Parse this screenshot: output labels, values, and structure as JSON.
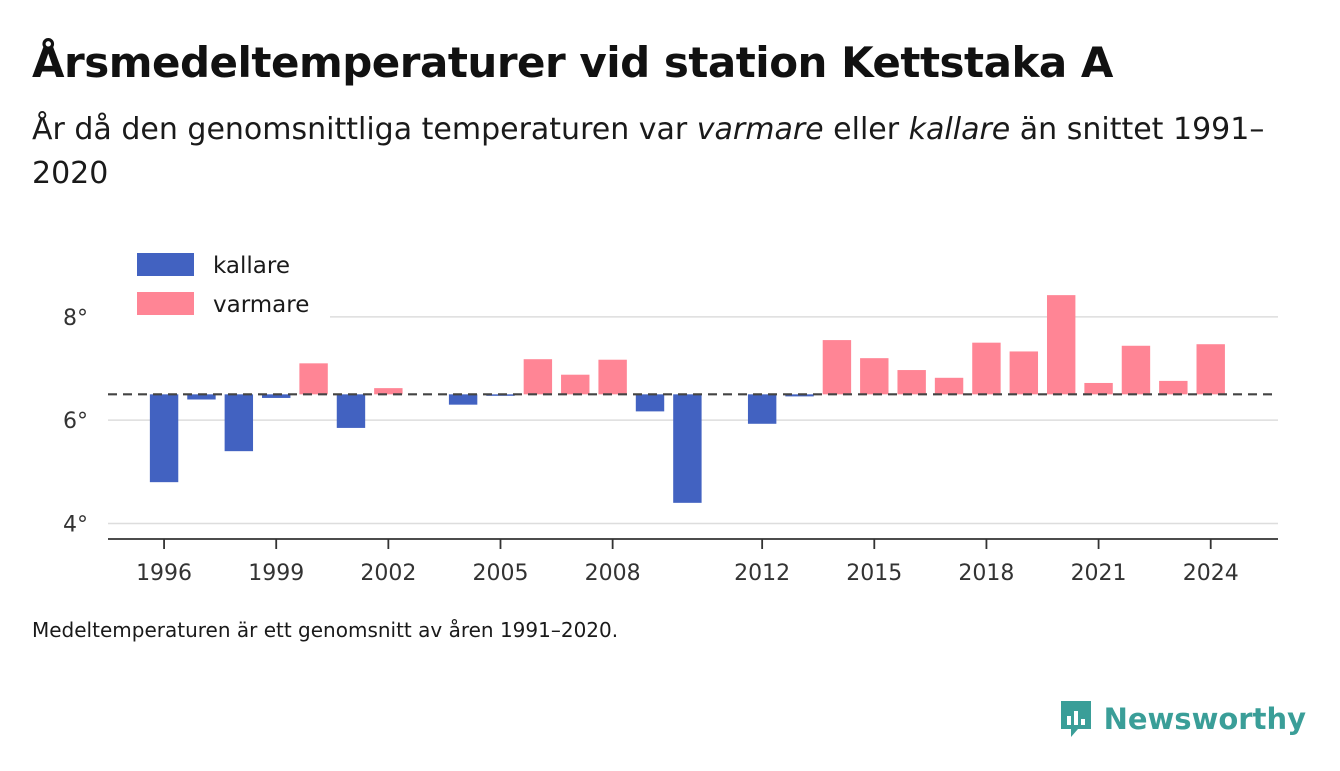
{
  "header": {
    "title": "Årsmedeltemperaturer vid station Kettstaka A",
    "subtitle_pre": "År då den genomsnittliga temperaturen var ",
    "subtitle_warm": "varmare",
    "subtitle_mid": " eller ",
    "subtitle_cold": "kallare",
    "subtitle_post": " än snittet 1991–2020"
  },
  "footnote": "Medeltemperaturen är ett genomsnitt av åren 1991–2020.",
  "brand": {
    "name": "Newsworthy",
    "icon": "newsworthy-logo-icon",
    "color": "#3a9e98"
  },
  "chart_data": {
    "type": "bar",
    "baseline": 6.5,
    "ylim": [
      3.7,
      9.1
    ],
    "yticks": [
      4,
      6,
      8
    ],
    "ytick_labels": [
      "4°",
      "6°",
      "8°"
    ],
    "xlim": [
      1994.5,
      2025.8
    ],
    "xticks": [
      1996,
      1999,
      2002,
      2005,
      2008,
      2012,
      2015,
      2018,
      2021,
      2024
    ],
    "xtick_labels": [
      "1996",
      "1999",
      "2002",
      "2005",
      "2008",
      "2012",
      "2015",
      "2018",
      "2021",
      "2024"
    ],
    "grid": true,
    "legend": {
      "position": "top-left",
      "items": [
        {
          "label": "kallare",
          "color": "#4262c1"
        },
        {
          "label": "varmare",
          "color": "#ff8595"
        }
      ]
    },
    "colors": {
      "cold": "#4262c1",
      "warm": "#ff8595",
      "baseline": "#444444",
      "grid": "#dddddd",
      "axis": "#333333"
    },
    "years": [
      1996,
      1997,
      1998,
      1999,
      2000,
      2001,
      2002,
      2004,
      2005,
      2006,
      2007,
      2008,
      2009,
      2010,
      2012,
      2013,
      2014,
      2015,
      2016,
      2017,
      2018,
      2019,
      2020,
      2021,
      2022,
      2023,
      2024
    ],
    "values": [
      4.8,
      6.4,
      5.4,
      6.43,
      7.1,
      5.85,
      6.62,
      6.3,
      6.48,
      7.18,
      6.88,
      7.17,
      6.17,
      4.4,
      5.93,
      6.46,
      7.55,
      7.2,
      6.97,
      6.82,
      7.5,
      7.33,
      8.42,
      6.72,
      7.44,
      6.76,
      7.47
    ]
  }
}
